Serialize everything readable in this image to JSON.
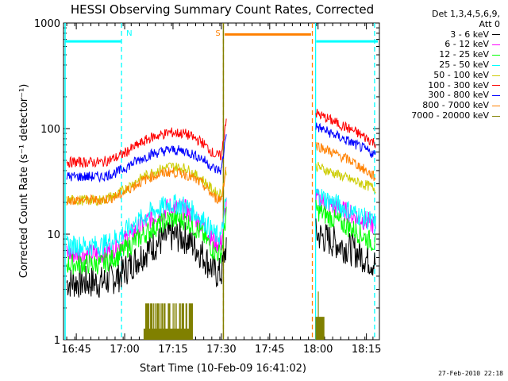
{
  "chart_data": {
    "type": "line",
    "title": "HESSI Observing Summary Count Rates, Corrected",
    "xlabel": "Start Time (10-Feb-09 16:41:02)",
    "ylabel": "Corrected Count Rate (s⁻¹ detector⁻¹)",
    "x_unit": "minutes after 16:41:02 UT",
    "xlim": [
      0,
      98
    ],
    "ylim": [
      1,
      1000
    ],
    "y_scale": "log",
    "x_ticks": [
      {
        "label": "16:45",
        "value": 3.97
      },
      {
        "label": "17:00",
        "value": 18.97
      },
      {
        "label": "17:15",
        "value": 33.97
      },
      {
        "label": "17:30",
        "value": 48.97
      },
      {
        "label": "17:45",
        "value": 63.97
      },
      {
        "label": "18:00",
        "value": 78.97
      },
      {
        "label": "18:15",
        "value": 93.97
      }
    ],
    "y_ticks": [
      {
        "label": "1",
        "value": 1
      },
      {
        "label": "10",
        "value": 10
      },
      {
        "label": "100",
        "value": 100
      },
      {
        "label": "1000",
        "value": 1000
      }
    ],
    "legend": {
      "title_lines": [
        "Det 1,3,4,5,6,9,",
        "Att 0"
      ],
      "placement": "right-outside"
    },
    "series": [
      {
        "name": "3 - 6 keV",
        "color": "#000000",
        "level": "low",
        "points": [
          [
            1,
            3.5
          ],
          [
            12,
            3.5
          ],
          [
            17,
            4
          ],
          [
            22,
            5.5
          ],
          [
            27,
            7.5
          ],
          [
            33,
            9.7
          ],
          [
            38,
            9.2
          ],
          [
            43,
            6.5
          ],
          [
            47,
            4.3
          ],
          [
            49,
            4.2
          ],
          [
            50.5,
            8
          ]
        ],
        "post": [
          [
            78.3,
            10
          ],
          [
            90,
            7
          ],
          [
            97,
            5.2
          ]
        ]
      },
      {
        "name": "6 - 12 keV",
        "color": "#ff00ff",
        "level": "mid",
        "points": [
          [
            1,
            6.5
          ],
          [
            12,
            6.5
          ],
          [
            17,
            7.8
          ],
          [
            22,
            10.5
          ],
          [
            27,
            14
          ],
          [
            33,
            18
          ],
          [
            38,
            17
          ],
          [
            43,
            12.5
          ],
          [
            47,
            8.3
          ],
          [
            49,
            8.2
          ],
          [
            50.5,
            20
          ]
        ],
        "post": [
          [
            78.3,
            22
          ],
          [
            90,
            15
          ],
          [
            97,
            12
          ]
        ]
      },
      {
        "name": "12 - 25 keV",
        "color": "#00ff00",
        "level": "mid",
        "points": [
          [
            1,
            5.2
          ],
          [
            12,
            5.2
          ],
          [
            17,
            6.3
          ],
          [
            22,
            8.5
          ],
          [
            27,
            11
          ],
          [
            33,
            14
          ],
          [
            38,
            13.5
          ],
          [
            43,
            10
          ],
          [
            47,
            6.7
          ],
          [
            49,
            6.6
          ],
          [
            50.5,
            16
          ]
        ],
        "post": [
          [
            78.3,
            17
          ],
          [
            90,
            11
          ],
          [
            97,
            8
          ]
        ]
      },
      {
        "name": "25 - 50 keV",
        "color": "#00ffff",
        "level": "mid",
        "points": [
          [
            1,
            7.8
          ],
          [
            12,
            7.8
          ],
          [
            17,
            9.5
          ],
          [
            22,
            12.5
          ],
          [
            27,
            16
          ],
          [
            33,
            19.5
          ],
          [
            38,
            18.5
          ],
          [
            43,
            14
          ],
          [
            47,
            9.8
          ],
          [
            49,
            9.6
          ],
          [
            50.5,
            22
          ]
        ],
        "post": [
          [
            78.3,
            24
          ],
          [
            90,
            16
          ],
          [
            97,
            12.5
          ]
        ]
      },
      {
        "name": "50 - 100 keV",
        "color": "#cccc00",
        "level": "high",
        "points": [
          [
            1,
            21
          ],
          [
            12,
            21
          ],
          [
            17,
            24
          ],
          [
            22,
            31
          ],
          [
            27,
            38
          ],
          [
            33,
            44
          ],
          [
            38,
            42
          ],
          [
            43,
            33
          ],
          [
            47,
            25
          ],
          [
            49,
            24
          ],
          [
            50.5,
            40
          ]
        ],
        "post": [
          [
            78.3,
            44
          ],
          [
            90,
            32
          ],
          [
            97,
            27
          ]
        ]
      },
      {
        "name": "100 - 300 keV",
        "color": "#ff0000",
        "level": "high",
        "points": [
          [
            1,
            48
          ],
          [
            12,
            48
          ],
          [
            17,
            54
          ],
          [
            22,
            67
          ],
          [
            27,
            82
          ],
          [
            33,
            92
          ],
          [
            38,
            89
          ],
          [
            43,
            74
          ],
          [
            47,
            56
          ],
          [
            49,
            55
          ],
          [
            50.5,
            130
          ]
        ],
        "post": [
          [
            78.3,
            140
          ],
          [
            90,
            95
          ],
          [
            97,
            72
          ]
        ]
      },
      {
        "name": "300 - 800 keV",
        "color": "#0000ff",
        "level": "high",
        "points": [
          [
            1,
            35
          ],
          [
            12,
            35
          ],
          [
            17,
            39
          ],
          [
            22,
            48
          ],
          [
            27,
            57
          ],
          [
            33,
            63
          ],
          [
            38,
            61
          ],
          [
            43,
            52
          ],
          [
            47,
            41
          ],
          [
            49,
            40
          ],
          [
            50.5,
            95
          ]
        ],
        "post": [
          [
            78.3,
            105
          ],
          [
            90,
            72
          ],
          [
            97,
            56
          ]
        ]
      },
      {
        "name": "800 - 7000 keV",
        "color": "#ff8000",
        "level": "high",
        "points": [
          [
            1,
            21
          ],
          [
            12,
            21
          ],
          [
            17,
            23
          ],
          [
            22,
            29
          ],
          [
            27,
            35
          ],
          [
            33,
            39
          ],
          [
            38,
            37
          ],
          [
            43,
            30
          ],
          [
            47,
            22
          ],
          [
            49,
            21.5
          ],
          [
            50.5,
            45
          ]
        ],
        "post": [
          [
            78.3,
            70
          ],
          [
            90,
            48
          ],
          [
            97,
            34
          ]
        ]
      },
      {
        "name": "7000 - 20000 keV",
        "color": "#808000",
        "level": "step",
        "points": [
          [
            25,
            1.7
          ],
          [
            40,
            1.7
          ]
        ],
        "post": [
          [
            78.3,
            2.2
          ],
          [
            81,
            1.8
          ]
        ]
      }
    ],
    "annotations": [
      {
        "label": "N",
        "color": "#00ffff",
        "style": "dashed",
        "x": 18.0
      },
      {
        "label": "S",
        "color": "#ff8000",
        "style": "dashed",
        "x": 49.6
      },
      {
        "label": "",
        "color": "#ff8000",
        "style": "dashed",
        "x": 77.2
      },
      {
        "label": "",
        "color": "#00ffff",
        "style": "solid",
        "x": 78.2
      },
      {
        "label": "",
        "color": "#00ffff",
        "style": "dashed",
        "x": 96.5
      }
    ],
    "state_bars": [
      {
        "color": "#00ffff",
        "x_start": 0.5,
        "x_end": 17.8,
        "y": 670
      },
      {
        "color": "#ff8000",
        "x_start": 50.0,
        "x_end": 76.8,
        "y": 780
      },
      {
        "color": "#00ffff",
        "x_start": 78.4,
        "x_end": 97.5,
        "y": 670
      }
    ],
    "attenuator_marks": [
      {
        "color": "#808000",
        "x": 49.6
      },
      {
        "color": "#00ffff",
        "x": 0.5
      }
    ]
  },
  "footer": {
    "date": "27-Feb-2010 22:18"
  }
}
